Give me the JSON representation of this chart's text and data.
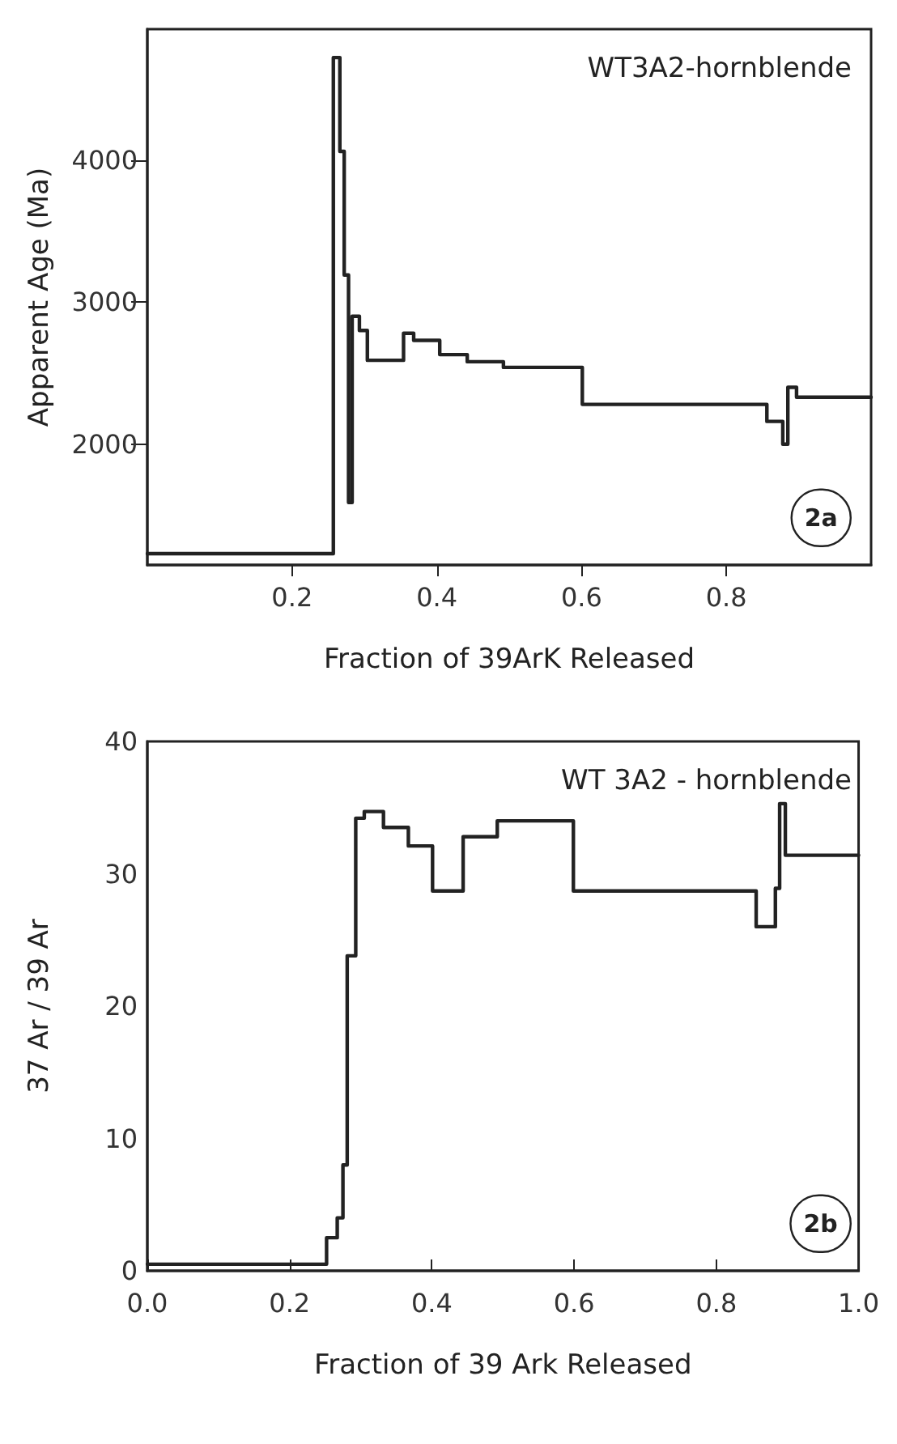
{
  "chart_data": [
    {
      "type": "step",
      "xlabel": "Fraction of 39ArK Released",
      "ylabel": "Apparent Age (Ma)",
      "annotations": [
        "WT3A2-hornblende",
        "2a"
      ],
      "xlim": [
        0,
        1
      ],
      "xticks": [
        0.2,
        0.4,
        0.6,
        0.8
      ],
      "ylim": [
        1150,
        4920
      ],
      "yticks": [
        2000,
        3000,
        4000
      ],
      "grid": false,
      "series": [
        {
          "color": "#222222",
          "x": [
            0,
            0.257,
            0.266,
            0.272,
            0.278,
            0.283,
            0.293,
            0.304,
            0.354,
            0.368,
            0.404,
            0.442,
            0.492,
            0.601,
            0.856,
            0.878,
            0.885,
            0.897,
            1.0
          ],
          "values": [
            1230,
            4720,
            4060,
            3190,
            1590,
            2900,
            2800,
            2590,
            2780,
            2730,
            2630,
            2580,
            2540,
            2280,
            2160,
            2000,
            2400,
            2330,
            2330
          ]
        }
      ]
    },
    {
      "type": "step",
      "xlabel": "Fraction of 39 Ark Released",
      "ylabel": "37 Ar / 39 Ar",
      "annotations": [
        "WT 3A2 - hornblende",
        "2b"
      ],
      "xlim": [
        0,
        1
      ],
      "xticks": [
        {
          "value": 0,
          "label": "0.0"
        },
        0.2,
        0.4,
        0.6,
        0.8,
        {
          "value": 1,
          "label": "1.0"
        }
      ],
      "ylim": [
        0,
        40
      ],
      "yticks": [
        0,
        10,
        20,
        30,
        40
      ],
      "grid": false,
      "series": [
        {
          "color": "#222222",
          "x": [
            0,
            0.252,
            0.267,
            0.275,
            0.281,
            0.293,
            0.305,
            0.332,
            0.367,
            0.401,
            0.444,
            0.492,
            0.599,
            0.856,
            0.883,
            0.889,
            0.897,
            1.0
          ],
          "values": [
            0.5,
            2.5,
            4,
            8,
            23.8,
            34.2,
            34.7,
            33.5,
            32.1,
            28.7,
            32.8,
            34,
            28.7,
            26,
            28.9,
            35.3,
            31.4,
            31.4
          ]
        }
      ]
    }
  ]
}
